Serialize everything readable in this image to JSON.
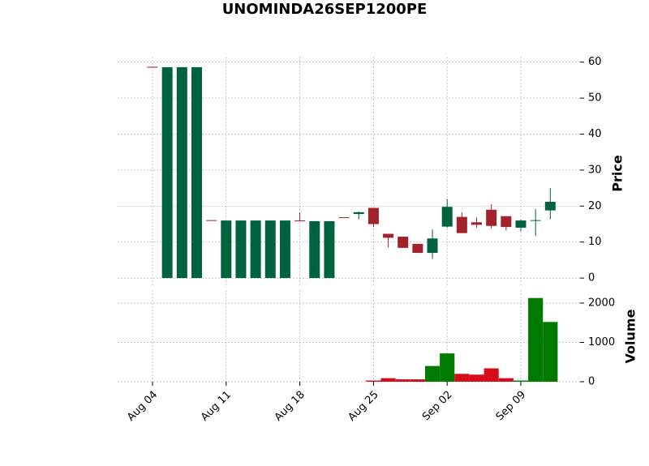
{
  "chart_data": {
    "type": "candlestick",
    "title": "UNOMINDA26SEP1200PE",
    "ylabel": "Price",
    "y2label": "Volume",
    "categories": [
      "Aug 04",
      null,
      null,
      null,
      null,
      "Aug 11",
      null,
      null,
      null,
      null,
      "Aug 18",
      null,
      null,
      null,
      null,
      "Aug 25",
      null,
      null,
      null,
      null,
      "Sep 02",
      null,
      null,
      null,
      null,
      "Sep 09",
      null,
      null
    ],
    "open": [
      58.7,
      0,
      0,
      0,
      16.1,
      0,
      0,
      0,
      0,
      0,
      16.0,
      0,
      0,
      16.9,
      17.8,
      19.5,
      12.3,
      11.5,
      9.5,
      7.0,
      14.3,
      17.0,
      15.5,
      19.0,
      17.2,
      14.0,
      15.9,
      18.8
    ],
    "high": [
      58.7,
      58.6,
      58.6,
      58.6,
      16.1,
      16.0,
      16.0,
      16.0,
      16.0,
      16.0,
      18.3,
      15.8,
      15.8,
      16.9,
      18.5,
      19.5,
      12.3,
      11.5,
      9.5,
      13.5,
      22.0,
      18.3,
      16.8,
      20.5,
      17.2,
      16.3,
      19.2,
      25.0
    ],
    "low": [
      58.5,
      0,
      0,
      0,
      15.9,
      0,
      0,
      0,
      0,
      0,
      15.8,
      0,
      0,
      16.8,
      16.3,
      14.2,
      8.5,
      8.4,
      7.0,
      5.3,
      14.0,
      12.5,
      14.0,
      13.8,
      13.2,
      13.0,
      11.7,
      16.3
    ],
    "close": [
      58.5,
      58.6,
      58.6,
      58.6,
      15.9,
      16.0,
      16.0,
      16.0,
      16.0,
      16.0,
      15.8,
      15.8,
      15.8,
      16.8,
      18.3,
      15.0,
      11.2,
      8.4,
      7.0,
      11.0,
      19.8,
      12.5,
      14.8,
      14.5,
      14.2,
      16.0,
      16.1,
      21.2
    ],
    "volume": [
      0,
      0,
      0,
      0,
      0,
      0,
      0,
      0,
      0,
      0,
      0,
      0,
      0,
      0,
      0,
      30,
      90,
      60,
      60,
      400,
      720,
      200,
      180,
      340,
      90,
      30,
      2130,
      1520
    ],
    "up_color": "#006340",
    "down_color": "#a3212b",
    "volume_up_color": "#007a00",
    "volume_down_color": "#d50d18",
    "ylim": [
      -2,
      61.5
    ],
    "yticks": [
      0,
      10,
      20,
      30,
      40,
      50,
      60
    ],
    "y2lim": [
      0,
      2330
    ],
    "y2ticks": [
      0,
      1000,
      2000
    ],
    "grid": true
  }
}
